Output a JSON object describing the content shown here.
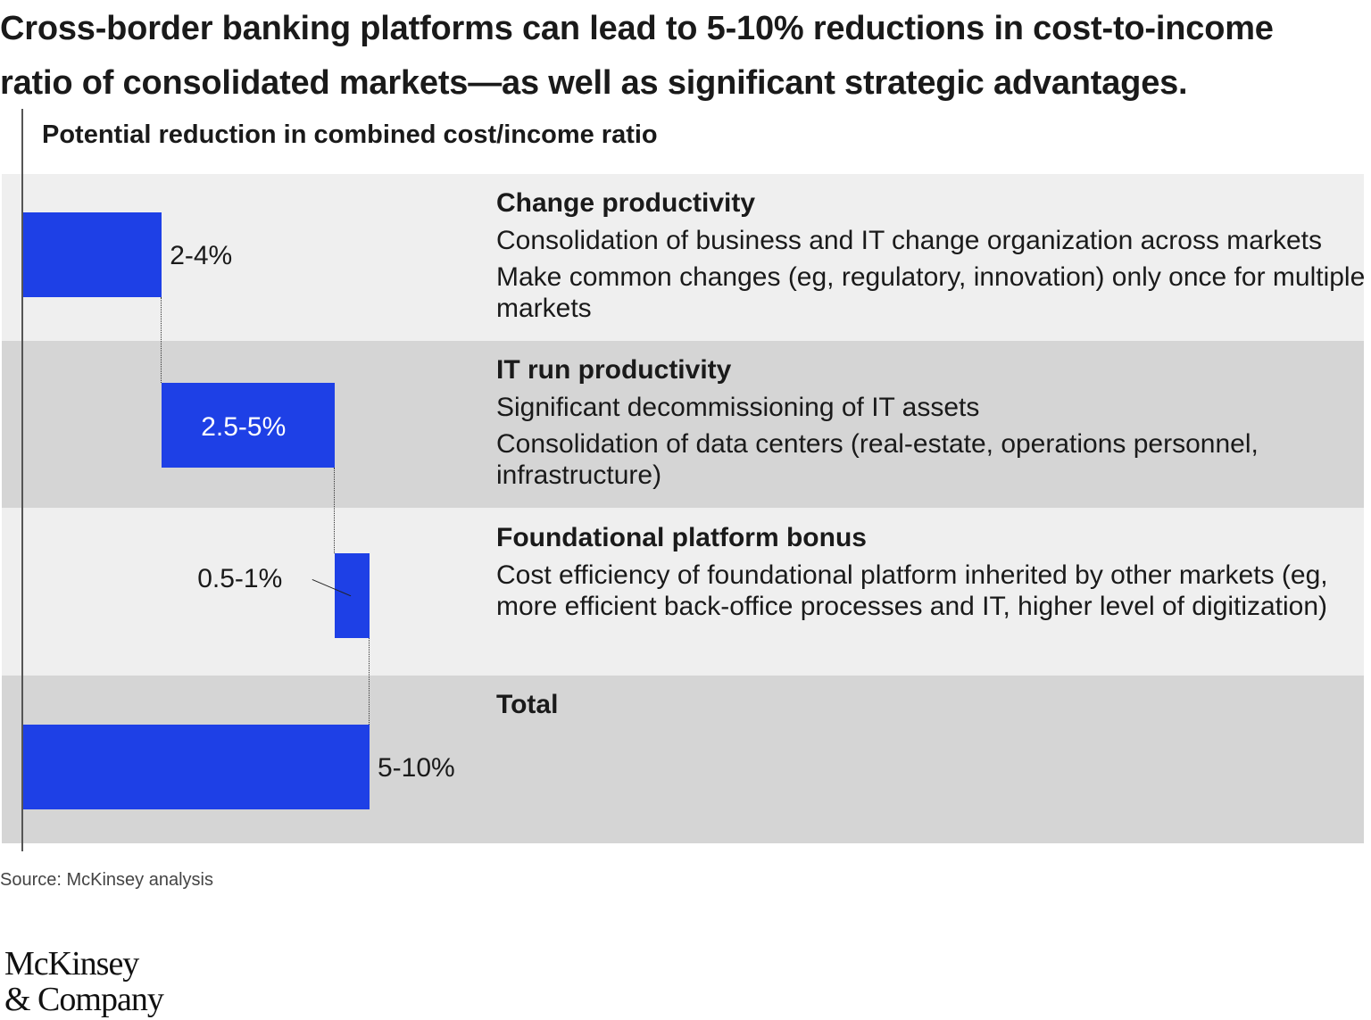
{
  "headline": {
    "line1": "Cross-border banking platforms can lead to 5-10% reductions in cost-to-income",
    "line2": "ratio of consolidated markets—as well as significant strategic advantages."
  },
  "chart_data": {
    "type": "waterfall",
    "title": "Potential reduction in combined cost/income ratio",
    "unit": "%",
    "bar_color": "#1e40e6",
    "categories": [
      {
        "name": "Change productivity",
        "range": [
          2,
          4
        ],
        "label": "2-4%",
        "details": [
          "Consolidation of business and IT change organization across markets",
          "Make common changes (eg, regulatory, innovation) only once for multiple markets"
        ]
      },
      {
        "name": "IT run productivity",
        "range": [
          2.5,
          5
        ],
        "label": "2.5-5%",
        "details": [
          "Significant decommissioning of IT assets",
          "Consolidation of data centers (real-estate, operations personnel, infrastructure)"
        ]
      },
      {
        "name": "Foundational platform bonus",
        "range": [
          0.5,
          1
        ],
        "label": "0.5-1%",
        "details": [
          "Cost efficiency of foundational platform inherited by other markets (eg, more efficient back-office processes and IT, higher level of digitization)"
        ]
      },
      {
        "name": "Total",
        "range": [
          5,
          10
        ],
        "label": "5-10%",
        "details": []
      }
    ]
  },
  "source": "Source: McKinsey analysis",
  "logo": {
    "line1": "McKinsey",
    "line2": "& Company"
  }
}
